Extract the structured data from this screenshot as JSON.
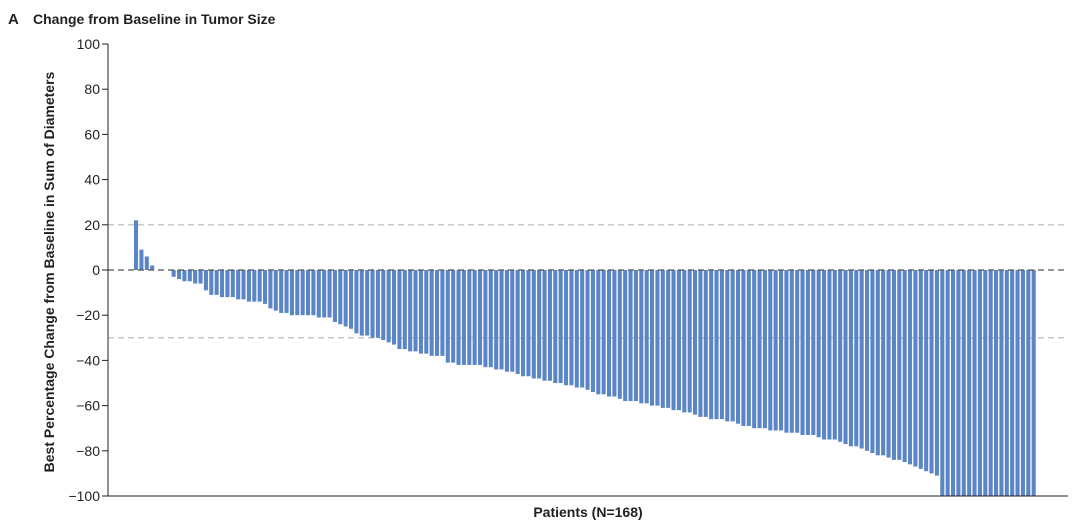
{
  "panel_letter": "A",
  "chart_data": {
    "type": "bar",
    "title": "Change from Baseline in Tumor Size",
    "xlabel": "Patients (N=168)",
    "ylabel": "Best Percentage Change from Baseline in Sum of Diameters",
    "ylim": [
      -100,
      100
    ],
    "yticks": [
      100,
      80,
      60,
      40,
      20,
      0,
      -20,
      -40,
      -60,
      -80,
      -100
    ],
    "ytick_labels": [
      "100",
      "80",
      "60",
      "40",
      "20",
      "0",
      "−20",
      "−40",
      "−60",
      "−80",
      "−100"
    ],
    "reference_lines": [
      20,
      0,
      -30
    ],
    "grid": false,
    "bar_color": "#5b86c5",
    "n_patients": 168,
    "values": [
      22,
      9,
      6,
      2,
      0,
      0,
      0,
      -3,
      -4,
      -5,
      -5,
      -6,
      -6,
      -9,
      -11,
      -11,
      -12,
      -12,
      -12,
      -13,
      -13,
      -14,
      -14,
      -14,
      -15,
      -17,
      -18,
      -19,
      -19,
      -20,
      -20,
      -20,
      -20,
      -20,
      -21,
      -21,
      -21,
      -23,
      -24,
      -25,
      -26,
      -28,
      -29,
      -29,
      -30,
      -30,
      -31,
      -32,
      -33,
      -35,
      -35,
      -36,
      -36,
      -37,
      -37,
      -38,
      -38,
      -38,
      -41,
      -41,
      -42,
      -42,
      -42,
      -42,
      -42,
      -43,
      -43,
      -44,
      -44,
      -45,
      -45,
      -46,
      -47,
      -47,
      -48,
      -48,
      -49,
      -49,
      -50,
      -50,
      -51,
      -51,
      -52,
      -52,
      -53,
      -54,
      -55,
      -55,
      -56,
      -56,
      -57,
      -58,
      -58,
      -58,
      -59,
      -59,
      -60,
      -60,
      -61,
      -61,
      -62,
      -62,
      -63,
      -63,
      -64,
      -65,
      -65,
      -66,
      -66,
      -66,
      -67,
      -67,
      -68,
      -69,
      -69,
      -70,
      -70,
      -70,
      -71,
      -71,
      -71,
      -72,
      -72,
      -72,
      -73,
      -73,
      -73,
      -74,
      -75,
      -75,
      -75,
      -76,
      -77,
      -78,
      -78,
      -79,
      -80,
      -81,
      -82,
      -82,
      -83,
      -84,
      -84,
      -85,
      -86,
      -87,
      -88,
      -89,
      -90,
      -91,
      -100,
      -100,
      -100,
      -100,
      -100,
      -100,
      -100,
      -100,
      -100,
      -100,
      -100,
      -100,
      -100,
      -100,
      -100,
      -100,
      -100,
      -100
    ]
  }
}
